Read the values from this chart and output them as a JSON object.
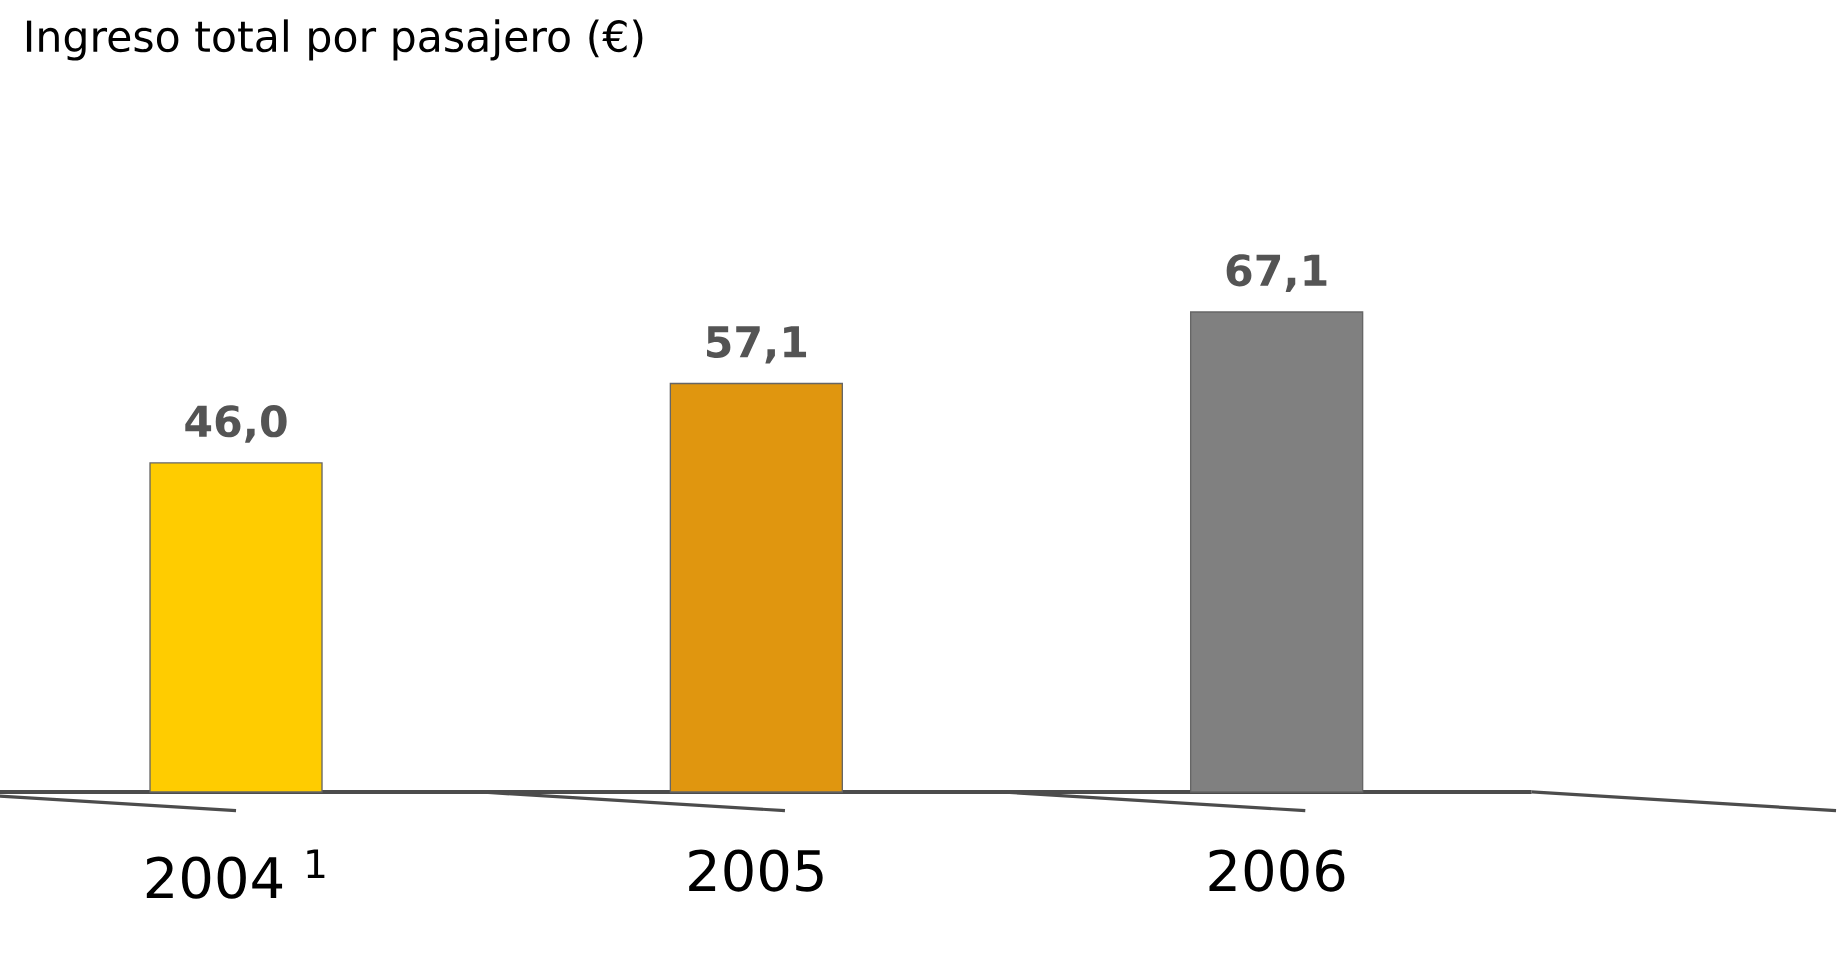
{
  "chart_data": {
    "type": "bar",
    "title": "Ingreso total por pasajero (€)",
    "categories": [
      "2004 $^{1}$",
      "2005",
      "2006"
    ],
    "values": [
      46.0,
      57.1,
      67.1
    ],
    "colors": [
      "#ffcc00",
      "#e0960f",
      "#808080"
    ],
    "value_labels": [
      "46,0",
      "57,1",
      "67,1"
    ]
  }
}
